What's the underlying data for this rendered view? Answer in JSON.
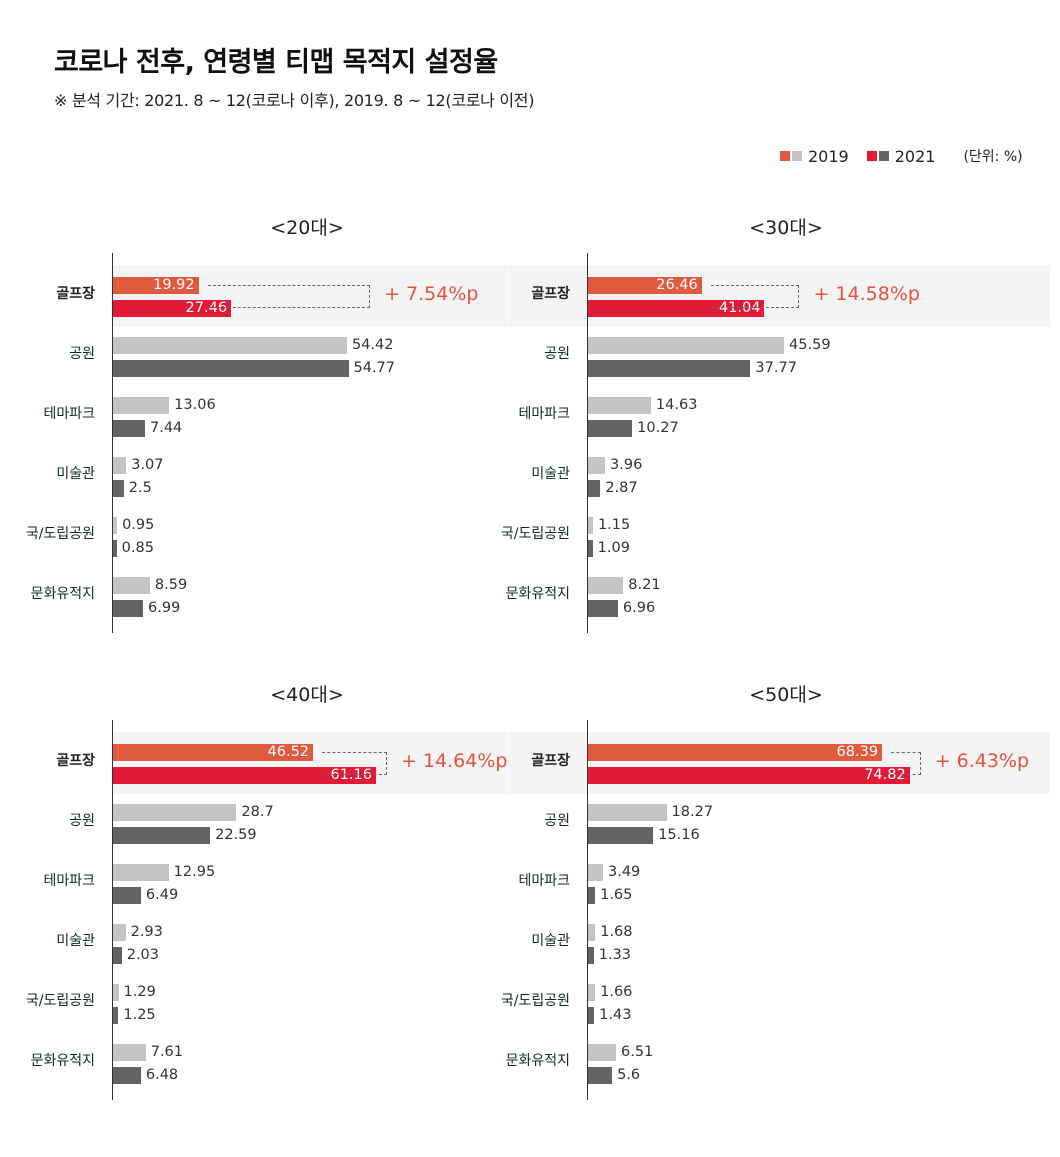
{
  "header": {
    "title": "코로나 전후, 연령별 티맵 목적지 설정율",
    "subtitle": "※ 분석 기간: 2021. 8 ~ 12(코로나 이후), 2019. 8 ~ 12(코로나 이전)"
  },
  "legend": {
    "items": [
      {
        "label": "2019",
        "colors": [
          "#e05a40",
          "#c4c4c4"
        ]
      },
      {
        "label": "2021",
        "colors": [
          "#e31a37",
          "#636363"
        ]
      }
    ],
    "unit": "(단위: %)"
  },
  "colors": {
    "highlight_2019": "#e05a40",
    "highlight_2021": "#e31a37",
    "other_2019": "#c4c4c4",
    "other_2021": "#636363",
    "diff_text": "#e8523c",
    "highlight_bg": "#f4f4f4"
  },
  "chart_data": [
    {
      "type": "bar",
      "orientation": "horizontal",
      "title": "<20대>",
      "categories": [
        "골프장",
        "공원",
        "테마파크",
        "미술관",
        "국/도립공원",
        "문화유적지"
      ],
      "series": [
        {
          "name": "2019",
          "values": [
            19.92,
            54.42,
            13.06,
            3.07,
            0.95,
            8.59
          ]
        },
        {
          "name": "2021",
          "values": [
            27.46,
            54.77,
            7.44,
            2.5,
            0.85,
            6.99
          ]
        }
      ],
      "annotation": "+ 7.54%p",
      "highlight_category": "골프장",
      "xlabel": "",
      "ylabel": "",
      "grid": false
    },
    {
      "type": "bar",
      "orientation": "horizontal",
      "title": "<30대>",
      "categories": [
        "골프장",
        "공원",
        "테마파크",
        "미술관",
        "국/도립공원",
        "문화유적지"
      ],
      "series": [
        {
          "name": "2019",
          "values": [
            26.46,
            45.59,
            14.63,
            3.96,
            1.15,
            8.21
          ]
        },
        {
          "name": "2021",
          "values": [
            41.04,
            37.77,
            10.27,
            2.87,
            1.09,
            6.96
          ]
        }
      ],
      "annotation": "+ 14.58%p",
      "highlight_category": "골프장",
      "xlabel": "",
      "ylabel": "",
      "grid": false
    },
    {
      "type": "bar",
      "orientation": "horizontal",
      "title": "<40대>",
      "categories": [
        "골프장",
        "공원",
        "테마파크",
        "미술관",
        "국/도립공원",
        "문화유적지"
      ],
      "series": [
        {
          "name": "2019",
          "values": [
            46.52,
            28.7,
            12.95,
            2.93,
            1.29,
            7.61
          ]
        },
        {
          "name": "2021",
          "values": [
            61.16,
            22.59,
            6.49,
            2.03,
            1.25,
            6.48
          ]
        }
      ],
      "annotation": "+ 14.64%p",
      "highlight_category": "골프장",
      "xlabel": "",
      "ylabel": "",
      "grid": false
    },
    {
      "type": "bar",
      "orientation": "horizontal",
      "title": "<50대>",
      "categories": [
        "골프장",
        "공원",
        "테마파크",
        "미술관",
        "국/도립공원",
        "문화유적지"
      ],
      "series": [
        {
          "name": "2019",
          "values": [
            68.39,
            18.27,
            3.49,
            1.68,
            1.66,
            6.51
          ]
        },
        {
          "name": "2021",
          "values": [
            74.82,
            15.16,
            1.65,
            1.33,
            1.43,
            5.6
          ]
        }
      ],
      "annotation": "+ 6.43%p",
      "highlight_category": "골프장",
      "xlabel": "",
      "ylabel": "",
      "grid": false
    }
  ]
}
